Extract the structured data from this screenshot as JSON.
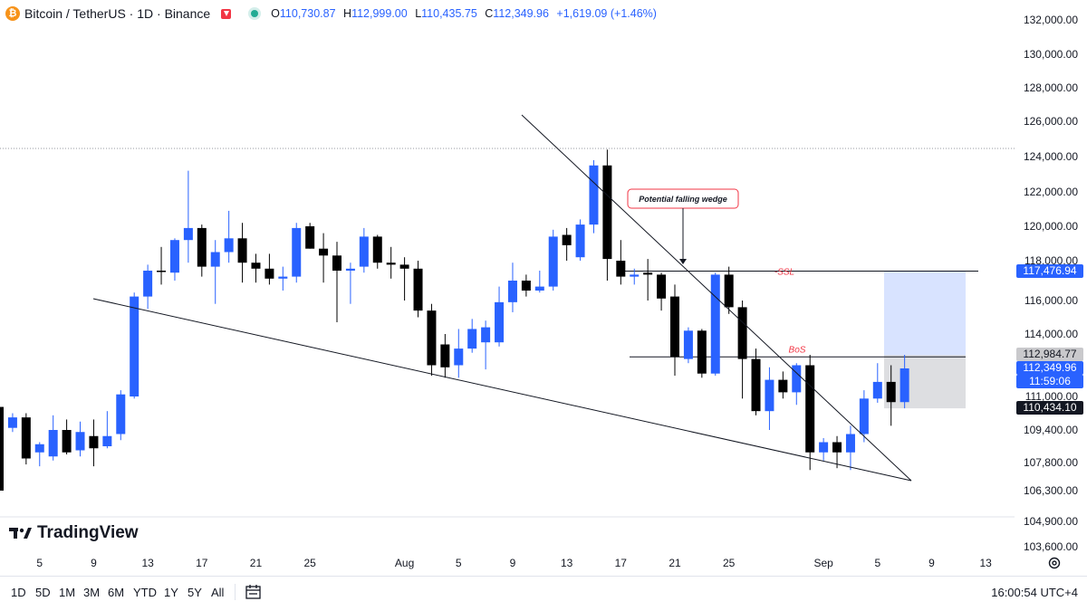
{
  "header": {
    "symbol": "Bitcoin / TetherUS · 1D · Binance",
    "open_label": "O",
    "open": "110,730.87",
    "high_label": "H",
    "high": "112,999.00",
    "low_label": "L",
    "low": "110,435.75",
    "close_label": "C",
    "close": "112,349.96",
    "change": "+1,619.09 (+1.46%)"
  },
  "chart_data": {
    "type": "candlestick",
    "y_axis_ticks": [
      "132,000.00",
      "130,000.00",
      "128,000.00",
      "126,000.00",
      "124,000.00",
      "122,000.00",
      "120,000.00",
      "118,000.00",
      "116,000.00",
      "114,000.00",
      "111,000.00",
      "109,400.00",
      "107,800.00",
      "106,300.00",
      "104,900.00",
      "103,600.00"
    ],
    "x_axis_ticks": [
      "5",
      "9",
      "13",
      "17",
      "21",
      "25",
      "Aug",
      "5",
      "9",
      "13",
      "17",
      "21",
      "25",
      "Sep",
      "5",
      "9",
      "13"
    ],
    "candles": [
      {
        "o": 110500,
        "h": 110800,
        "l": 106300,
        "c": 106300,
        "up": false
      },
      {
        "o": 109500,
        "h": 110200,
        "l": 109300,
        "c": 110000,
        "up": true
      },
      {
        "o": 110000,
        "h": 110200,
        "l": 107700,
        "c": 108000,
        "up": false
      },
      {
        "o": 108300,
        "h": 108800,
        "l": 107600,
        "c": 108700,
        "up": true
      },
      {
        "o": 108100,
        "h": 110100,
        "l": 107900,
        "c": 109400,
        "up": true
      },
      {
        "o": 109400,
        "h": 109900,
        "l": 108200,
        "c": 108300,
        "up": false
      },
      {
        "o": 108400,
        "h": 109800,
        "l": 108100,
        "c": 109300,
        "up": true
      },
      {
        "o": 109100,
        "h": 109900,
        "l": 107600,
        "c": 108500,
        "up": false
      },
      {
        "o": 108600,
        "h": 110300,
        "l": 108500,
        "c": 109100,
        "up": true
      },
      {
        "o": 109200,
        "h": 111300,
        "l": 108900,
        "c": 111100,
        "up": true
      },
      {
        "o": 111000,
        "h": 116400,
        "l": 110900,
        "c": 116200,
        "up": true
      },
      {
        "o": 116200,
        "h": 117800,
        "l": 115500,
        "c": 117500,
        "up": true
      },
      {
        "o": 117500,
        "h": 118800,
        "l": 116800,
        "c": 117500,
        "up": false
      },
      {
        "o": 117400,
        "h": 119300,
        "l": 117000,
        "c": 119200,
        "up": true
      },
      {
        "o": 119200,
        "h": 123200,
        "l": 117900,
        "c": 119900,
        "up": true
      },
      {
        "o": 119900,
        "h": 120100,
        "l": 117200,
        "c": 117700,
        "up": false
      },
      {
        "o": 117700,
        "h": 119200,
        "l": 115800,
        "c": 118500,
        "up": true
      },
      {
        "o": 118500,
        "h": 120900,
        "l": 117900,
        "c": 119300,
        "up": true
      },
      {
        "o": 119300,
        "h": 120200,
        "l": 116900,
        "c": 117900,
        "up": false
      },
      {
        "o": 117900,
        "h": 118400,
        "l": 116900,
        "c": 117600,
        "up": false
      },
      {
        "o": 117600,
        "h": 118400,
        "l": 116800,
        "c": 117100,
        "up": false
      },
      {
        "o": 117100,
        "h": 117700,
        "l": 116500,
        "c": 117200,
        "up": true
      },
      {
        "o": 117200,
        "h": 120200,
        "l": 116900,
        "c": 119900,
        "up": true
      },
      {
        "o": 120000,
        "h": 120200,
        "l": 118700,
        "c": 118700,
        "up": false
      },
      {
        "o": 118700,
        "h": 119600,
        "l": 116900,
        "c": 118300,
        "up": false
      },
      {
        "o": 118300,
        "h": 119100,
        "l": 114700,
        "c": 117500,
        "up": false
      },
      {
        "o": 117500,
        "h": 117900,
        "l": 115800,
        "c": 117600,
        "up": true
      },
      {
        "o": 117700,
        "h": 119900,
        "l": 117400,
        "c": 119400,
        "up": true
      },
      {
        "o": 119400,
        "h": 119500,
        "l": 117600,
        "c": 117900,
        "up": false
      },
      {
        "o": 117900,
        "h": 118800,
        "l": 117100,
        "c": 117800,
        "up": false
      },
      {
        "o": 117800,
        "h": 118200,
        "l": 116000,
        "c": 117600,
        "up": false
      },
      {
        "o": 117600,
        "h": 118000,
        "l": 115000,
        "c": 115400,
        "up": false
      },
      {
        "o": 115400,
        "h": 115800,
        "l": 112000,
        "c": 112500,
        "up": false
      },
      {
        "o": 113500,
        "h": 114000,
        "l": 111900,
        "c": 112400,
        "up": false
      },
      {
        "o": 112500,
        "h": 114300,
        "l": 111900,
        "c": 113300,
        "up": true
      },
      {
        "o": 113300,
        "h": 114900,
        "l": 113100,
        "c": 114300,
        "up": true
      },
      {
        "o": 114400,
        "h": 114800,
        "l": 112300,
        "c": 113600,
        "up": true
      },
      {
        "o": 113600,
        "h": 116700,
        "l": 113400,
        "c": 115900,
        "up": true
      },
      {
        "o": 115900,
        "h": 117900,
        "l": 115300,
        "c": 117000,
        "up": true
      },
      {
        "o": 117000,
        "h": 117300,
        "l": 116200,
        "c": 116500,
        "up": false
      },
      {
        "o": 116500,
        "h": 117500,
        "l": 116400,
        "c": 116700,
        "up": true
      },
      {
        "o": 116700,
        "h": 119800,
        "l": 116500,
        "c": 119400,
        "up": true
      },
      {
        "o": 119500,
        "h": 119900,
        "l": 118000,
        "c": 118900,
        "up": false
      },
      {
        "o": 118200,
        "h": 120400,
        "l": 118000,
        "c": 120100,
        "up": true
      },
      {
        "o": 120100,
        "h": 123800,
        "l": 119600,
        "c": 123500,
        "up": true
      },
      {
        "o": 123500,
        "h": 124400,
        "l": 117000,
        "c": 118100,
        "up": false
      },
      {
        "o": 118000,
        "h": 119200,
        "l": 116800,
        "c": 117200,
        "up": false
      },
      {
        "o": 117200,
        "h": 117600,
        "l": 116800,
        "c": 117300,
        "up": true
      },
      {
        "o": 117300,
        "h": 118100,
        "l": 116000,
        "c": 117400,
        "up": false
      },
      {
        "o": 117300,
        "h": 117400,
        "l": 115400,
        "c": 116100,
        "up": false
      },
      {
        "o": 116200,
        "h": 116800,
        "l": 112000,
        "c": 112900,
        "up": false
      },
      {
        "o": 112800,
        "h": 114400,
        "l": 112600,
        "c": 114200,
        "up": true
      },
      {
        "o": 114200,
        "h": 114300,
        "l": 111900,
        "c": 112100,
        "up": false
      },
      {
        "o": 112100,
        "h": 117400,
        "l": 112000,
        "c": 117300,
        "up": true
      },
      {
        "o": 117300,
        "h": 117700,
        "l": 115200,
        "c": 115600,
        "up": false
      },
      {
        "o": 115600,
        "h": 116000,
        "l": 110900,
        "c": 112800,
        "up": false
      },
      {
        "o": 112800,
        "h": 113300,
        "l": 110100,
        "c": 110300,
        "up": false
      },
      {
        "o": 110300,
        "h": 112400,
        "l": 109400,
        "c": 111800,
        "up": true
      },
      {
        "o": 111800,
        "h": 112200,
        "l": 110900,
        "c": 111200,
        "up": false
      },
      {
        "o": 111200,
        "h": 112600,
        "l": 110600,
        "c": 112500,
        "up": true
      },
      {
        "o": 112500,
        "h": 113000,
        "l": 107400,
        "c": 108300,
        "up": false
      },
      {
        "o": 108300,
        "h": 109000,
        "l": 107900,
        "c": 108800,
        "up": true
      },
      {
        "o": 108800,
        "h": 109100,
        "l": 107500,
        "c": 108300,
        "up": false
      },
      {
        "o": 108300,
        "h": 109600,
        "l": 107400,
        "c": 109200,
        "up": true
      },
      {
        "o": 109200,
        "h": 111300,
        "l": 108800,
        "c": 110900,
        "up": true
      },
      {
        "o": 110900,
        "h": 112600,
        "l": 110700,
        "c": 111700,
        "up": true
      },
      {
        "o": 111700,
        "h": 112500,
        "l": 109600,
        "c": 110730,
        "up": false
      },
      {
        "o": 110730,
        "h": 112999,
        "l": 110435,
        "c": 112349,
        "up": true
      }
    ],
    "levels": {
      "ssl": 117476.94,
      "bos": 112900
    },
    "price_tags": [
      {
        "text": "117,476.94",
        "price": 117476.94,
        "bg": "#2962ff",
        "fg": "#ffffff"
      },
      {
        "text": "112,984.77",
        "price": 112984.77,
        "bg": "#c9c9cc",
        "fg": "#131722"
      },
      {
        "text": "112,349.96",
        "price": 112349.96,
        "bg": "#2962ff",
        "fg": "#ffffff"
      },
      {
        "text": "11:59:06",
        "price": 111950,
        "bg": "#2962ff",
        "fg": "#ffffff"
      },
      {
        "text": "110,434.10",
        "price": 110434.1,
        "bg": "#131722",
        "fg": "#ffffff"
      }
    ],
    "annotations": {
      "wedge": "Potential falling wedge",
      "ssl": "-SSL",
      "bos": "BoS"
    },
    "colors": {
      "up": "#2962ff",
      "down": "#000000",
      "annot": "#f23645"
    }
  },
  "brand": "TradingView",
  "bottom": {
    "timeframes": [
      "1D",
      "5D",
      "1M",
      "3M",
      "6M",
      "YTD",
      "1Y",
      "5Y",
      "All"
    ],
    "clock": "16:00:54 UTC+4"
  }
}
